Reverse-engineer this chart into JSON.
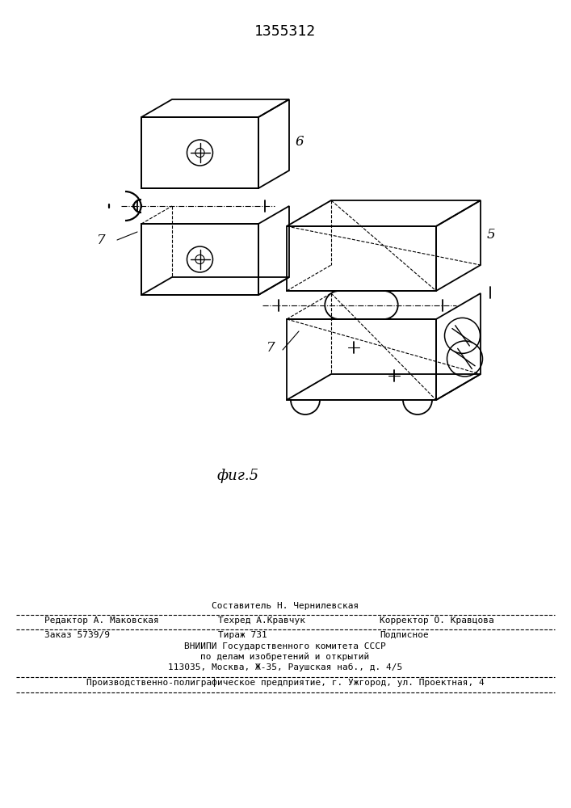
{
  "title": "1355312",
  "fig_label": "фиг.5",
  "label_6": "6",
  "label_7_left": "7",
  "label_7_right": "7",
  "label_5": "5",
  "footer_line1": "Составитель Н. Чернилевская",
  "footer_line2_left": "Редактор А. Маковская",
  "footer_line2_mid": "Техред А.Кравчук",
  "footer_line2_right": "Корректор О. Кравцова",
  "footer_line3_left": "Заказ 5739/9",
  "footer_line3_mid": "Тираж 731",
  "footer_line3_right": "Подписное",
  "footer_line4": "ВНИИПИ Государственного комитета СССР",
  "footer_line5": "по делам изобретений и открытий",
  "footer_line6": "113035, Москва, Ж-35, Раушская наб., д. 4/5",
  "footer_line7": "Производственно-полиграфическое предприятие, г. Ужгород, ул. Проектная, 4",
  "bg_color": "#ffffff",
  "line_color": "#000000"
}
